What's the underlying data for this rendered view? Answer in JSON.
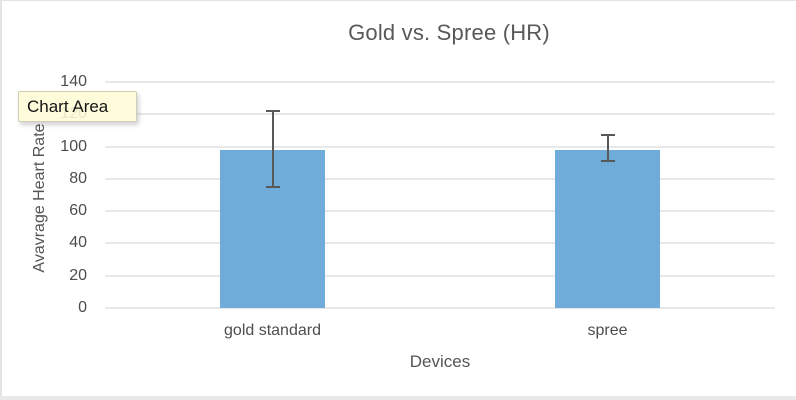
{
  "tooltip": {
    "label": "Chart Area"
  },
  "chart_data": {
    "type": "bar",
    "title": "Gold vs. Spree (HR)",
    "xlabel": "Devices",
    "ylabel": "Avavrage Heart Rate",
    "categories": [
      "gold standard",
      "spree"
    ],
    "series": [
      {
        "name": "HR",
        "values": [
          98,
          98
        ],
        "error_high": [
          122,
          107
        ],
        "error_low": [
          75,
          91
        ]
      }
    ],
    "ylim": [
      0,
      140
    ],
    "yticks": [
      0,
      20,
      40,
      60,
      80,
      100,
      120,
      140
    ],
    "grid": true,
    "legend": false,
    "bar_color": "#6facda",
    "error_bar_color": "#595959",
    "gridline_color": "#e8e8e8",
    "title_color": "#595959",
    "label_color": "#4d4d4d"
  }
}
